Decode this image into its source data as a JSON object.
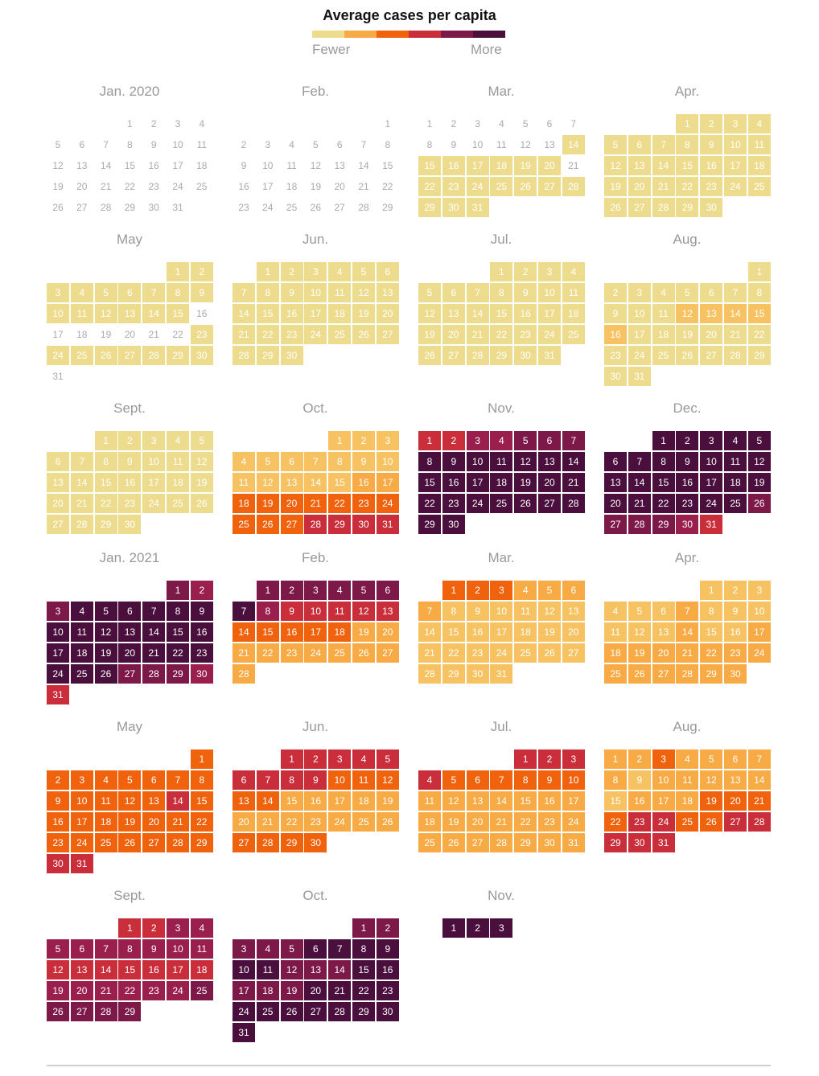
{
  "legend": {
    "title": "Average cases per capita",
    "low_label": "Fewer",
    "high_label": "More",
    "colors": [
      "#eedc8e",
      "#f8aa45",
      "#f1620d",
      "#c92e3a",
      "#7d1948",
      "#4a0f3c"
    ]
  },
  "level_colors": [
    "#ffffff",
    "#eedc8e",
    "#f7c362",
    "#f8aa45",
    "#f1620d",
    "#c92e3a",
    "#9a1f4c",
    "#7d1948",
    "#4a0f3c"
  ],
  "chart_data": {
    "type": "heatmap",
    "title": "Average cases per capita",
    "scale_labels": [
      "Fewer",
      "More"
    ],
    "level_scale": "0 = no data, 1 = fewest cases per capita ... 8 = most cases per capita",
    "months": [
      {
        "label": "Jan. 2020",
        "year": 2020,
        "month": 1,
        "levels": [
          0,
          0,
          0,
          0,
          0,
          0,
          0,
          0,
          0,
          0,
          0,
          0,
          0,
          0,
          0,
          0,
          0,
          0,
          0,
          0,
          0,
          0,
          0,
          0,
          0,
          0,
          0,
          0,
          0,
          0,
          0
        ]
      },
      {
        "label": "Feb.",
        "year": 2020,
        "month": 2,
        "levels": [
          0,
          0,
          0,
          0,
          0,
          0,
          0,
          0,
          0,
          0,
          0,
          0,
          0,
          0,
          0,
          0,
          0,
          0,
          0,
          0,
          0,
          0,
          0,
          0,
          0,
          0,
          0,
          0,
          0
        ]
      },
      {
        "label": "Mar.",
        "year": 2020,
        "month": 3,
        "levels": [
          0,
          0,
          0,
          0,
          0,
          0,
          0,
          0,
          0,
          0,
          0,
          0,
          0,
          1,
          1,
          1,
          1,
          1,
          1,
          1,
          0,
          1,
          1,
          1,
          1,
          1,
          1,
          1,
          1,
          1,
          1
        ]
      },
      {
        "label": "Apr.",
        "year": 2020,
        "month": 4,
        "levels": [
          1,
          1,
          1,
          1,
          1,
          1,
          1,
          1,
          1,
          1,
          1,
          1,
          1,
          1,
          1,
          1,
          1,
          1,
          1,
          1,
          1,
          1,
          1,
          1,
          1,
          1,
          1,
          1,
          1,
          1
        ]
      },
      {
        "label": "May",
        "year": 2020,
        "month": 5,
        "levels": [
          1,
          1,
          1,
          1,
          1,
          1,
          1,
          1,
          1,
          1,
          1,
          1,
          1,
          1,
          1,
          0,
          0,
          0,
          0,
          0,
          0,
          0,
          1,
          1,
          1,
          1,
          1,
          1,
          1,
          1,
          0
        ]
      },
      {
        "label": "Jun.",
        "year": 2020,
        "month": 6,
        "levels": [
          1,
          1,
          1,
          1,
          1,
          1,
          1,
          1,
          1,
          1,
          1,
          1,
          1,
          1,
          1,
          1,
          1,
          1,
          1,
          1,
          1,
          1,
          1,
          1,
          1,
          1,
          1,
          1,
          1,
          1
        ]
      },
      {
        "label": "Jul.",
        "year": 2020,
        "month": 7,
        "levels": [
          1,
          1,
          1,
          1,
          1,
          1,
          1,
          1,
          1,
          1,
          1,
          1,
          1,
          1,
          1,
          1,
          1,
          1,
          1,
          1,
          1,
          1,
          1,
          1,
          1,
          1,
          1,
          1,
          1,
          1,
          1
        ]
      },
      {
        "label": "Aug.",
        "year": 2020,
        "month": 8,
        "levels": [
          1,
          1,
          1,
          1,
          1,
          1,
          1,
          1,
          1,
          1,
          1,
          2,
          2,
          2,
          2,
          2,
          1,
          1,
          1,
          1,
          1,
          1,
          1,
          1,
          1,
          1,
          1,
          1,
          1,
          1,
          1
        ]
      },
      {
        "label": "Sept.",
        "year": 2020,
        "month": 9,
        "levels": [
          1,
          1,
          1,
          1,
          1,
          1,
          1,
          1,
          1,
          1,
          1,
          1,
          1,
          1,
          1,
          1,
          1,
          1,
          1,
          1,
          1,
          1,
          1,
          1,
          1,
          1,
          1,
          1,
          1,
          1
        ]
      },
      {
        "label": "Oct.",
        "year": 2020,
        "month": 10,
        "levels": [
          2,
          2,
          2,
          2,
          2,
          2,
          2,
          2,
          2,
          2,
          2,
          2,
          2,
          2,
          2,
          3,
          3,
          4,
          4,
          4,
          4,
          4,
          4,
          4,
          4,
          4,
          4,
          5,
          5,
          5,
          5
        ]
      },
      {
        "label": "Nov.",
        "year": 2020,
        "month": 11,
        "levels": [
          5,
          5,
          6,
          6,
          7,
          7,
          7,
          8,
          8,
          8,
          8,
          8,
          8,
          8,
          8,
          8,
          8,
          8,
          8,
          8,
          8,
          8,
          8,
          8,
          8,
          8,
          8,
          8,
          8,
          8
        ]
      },
      {
        "label": "Dec.",
        "year": 2020,
        "month": 12,
        "levels": [
          8,
          8,
          8,
          8,
          8,
          8,
          8,
          8,
          8,
          8,
          8,
          8,
          8,
          8,
          8,
          8,
          8,
          8,
          8,
          8,
          8,
          8,
          8,
          8,
          8,
          7,
          7,
          7,
          7,
          6,
          5
        ]
      },
      {
        "label": "Jan. 2021",
        "year": 2021,
        "month": 1,
        "levels": [
          7,
          6,
          7,
          8,
          8,
          8,
          8,
          8,
          8,
          8,
          8,
          8,
          8,
          8,
          8,
          8,
          8,
          8,
          8,
          8,
          8,
          8,
          8,
          8,
          8,
          8,
          7,
          7,
          7,
          6,
          5
        ]
      },
      {
        "label": "Feb.",
        "year": 2021,
        "month": 2,
        "levels": [
          7,
          7,
          7,
          7,
          7,
          7,
          8,
          6,
          5,
          5,
          5,
          5,
          5,
          4,
          4,
          4,
          4,
          4,
          3,
          3,
          3,
          3,
          3,
          3,
          3,
          3,
          3,
          3
        ]
      },
      {
        "label": "Mar.",
        "year": 2021,
        "month": 3,
        "levels": [
          4,
          4,
          4,
          3,
          3,
          3,
          3,
          2,
          2,
          2,
          2,
          2,
          2,
          2,
          2,
          2,
          2,
          2,
          2,
          2,
          2,
          2,
          2,
          2,
          2,
          2,
          2,
          2,
          2,
          2,
          2
        ]
      },
      {
        "label": "Apr.",
        "year": 2021,
        "month": 4,
        "levels": [
          2,
          2,
          2,
          2,
          2,
          2,
          3,
          2,
          2,
          2,
          2,
          2,
          2,
          3,
          2,
          2,
          3,
          3,
          3,
          3,
          3,
          3,
          3,
          3,
          3,
          3,
          3,
          3,
          3,
          3
        ]
      },
      {
        "label": "May",
        "year": 2021,
        "month": 5,
        "levels": [
          4,
          4,
          4,
          4,
          4,
          4,
          4,
          4,
          4,
          4,
          4,
          4,
          4,
          5,
          4,
          4,
          4,
          4,
          4,
          4,
          4,
          4,
          4,
          4,
          4,
          4,
          4,
          4,
          4,
          5,
          5
        ]
      },
      {
        "label": "Jun.",
        "year": 2021,
        "month": 6,
        "levels": [
          5,
          5,
          5,
          5,
          5,
          5,
          5,
          5,
          5,
          4,
          4,
          4,
          4,
          4,
          3,
          3,
          3,
          3,
          3,
          3,
          3,
          3,
          3,
          3,
          3,
          3,
          4,
          4,
          4,
          4
        ]
      },
      {
        "label": "Jul.",
        "year": 2021,
        "month": 7,
        "levels": [
          5,
          5,
          5,
          5,
          4,
          4,
          4,
          4,
          4,
          4,
          3,
          3,
          3,
          3,
          3,
          3,
          3,
          3,
          3,
          3,
          3,
          3,
          3,
          3,
          3,
          3,
          3,
          3,
          3,
          3,
          3
        ]
      },
      {
        "label": "Aug.",
        "year": 2021,
        "month": 8,
        "levels": [
          3,
          3,
          4,
          3,
          3,
          3,
          3,
          3,
          2,
          3,
          3,
          3,
          3,
          3,
          2,
          3,
          3,
          3,
          4,
          4,
          4,
          4,
          5,
          5,
          4,
          4,
          5,
          5,
          5,
          5,
          5
        ]
      },
      {
        "label": "Sept.",
        "year": 2021,
        "month": 9,
        "levels": [
          5,
          5,
          6,
          6,
          6,
          6,
          6,
          6,
          6,
          6,
          6,
          5,
          5,
          5,
          5,
          5,
          5,
          5,
          6,
          6,
          6,
          6,
          6,
          6,
          7,
          7,
          7,
          7,
          7
        ]
      },
      {
        "label": "Oct.",
        "year": 2021,
        "month": 10,
        "levels": [
          7,
          7,
          7,
          7,
          7,
          8,
          8,
          8,
          8,
          8,
          8,
          7,
          7,
          7,
          8,
          8,
          7,
          7,
          7,
          8,
          8,
          8,
          8,
          8,
          8,
          8,
          8,
          8,
          8,
          8,
          8
        ]
      },
      {
        "label": "Nov.",
        "year": 2021,
        "month": 11,
        "levels": [
          8,
          8,
          8
        ]
      }
    ]
  }
}
